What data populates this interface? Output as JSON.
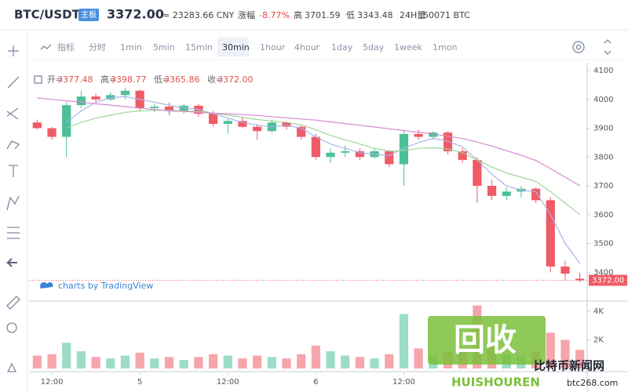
{
  "header": {
    "symbol": "BTC/USDT",
    "badge": "主板",
    "price": "3372.00",
    "cny": "≈ 23283.66 CNY",
    "change_label": "涨幅",
    "change": "-8.77%",
    "high_label": "高",
    "high": "3701.59",
    "low_label": "低",
    "low": "3343.48",
    "vol_label": "24H量",
    "volume": "50071 BTC"
  },
  "toolbar": {
    "items": [
      "指标",
      "分时",
      "1min",
      "5min",
      "15min",
      "30min",
      "1hour",
      "4hour",
      "1day",
      "5day",
      "1week",
      "1mon"
    ]
  },
  "legend": [
    {
      "label": "开=",
      "value": "3377.48"
    },
    {
      "label": "高=",
      "value": "3398.77"
    },
    {
      "label": "低=",
      "value": "3365.86"
    },
    {
      "label": "收=",
      "value": "3372.00"
    }
  ],
  "watermark": "charts by TradingView",
  "logo": {
    "big": "回收",
    "site": "比特币新闻网",
    "brand": "HUISHOUREN",
    "url": "btc268.com"
  },
  "chart_data": {
    "type": "candlestick",
    "categories": [
      null,
      "12:00",
      null,
      null,
      null,
      null,
      null,
      "5",
      null,
      null,
      null,
      null,
      null,
      "12:00",
      null,
      null,
      null,
      null,
      null,
      "6",
      null,
      null,
      null,
      null,
      null,
      "12:00",
      null,
      null,
      null,
      null,
      null,
      null,
      null,
      null,
      null,
      null,
      null,
      null
    ],
    "open": [
      3920,
      3900,
      3870,
      3980,
      4010,
      4000,
      4015,
      4030,
      3970,
      3975,
      3960,
      3978,
      3950,
      3915,
      3925,
      3905,
      3890,
      3920,
      3905,
      3870,
      3800,
      3815,
      3820,
      3800,
      3820,
      3775,
      3880,
      3870,
      3885,
      3820,
      3790,
      3700,
      3665,
      3680,
      3690,
      3650,
      3420,
      3377.48
    ],
    "high": [
      3930,
      3905,
      3990,
      4030,
      4020,
      4025,
      4040,
      4035,
      3985,
      3990,
      3985,
      3985,
      3960,
      3935,
      3940,
      3915,
      3930,
      3925,
      3910,
      3880,
      3830,
      3840,
      3830,
      3830,
      3825,
      3890,
      3895,
      3890,
      3890,
      3830,
      3800,
      3720,
      3695,
      3700,
      3695,
      3660,
      3440,
      3398.77
    ],
    "low": [
      3895,
      3860,
      3800,
      3970,
      3990,
      3995,
      4000,
      3960,
      3955,
      3945,
      3950,
      3940,
      3905,
      3880,
      3900,
      3860,
      3885,
      3895,
      3860,
      3790,
      3780,
      3800,
      3790,
      3795,
      3765,
      3700,
      3860,
      3860,
      3810,
      3780,
      3640,
      3650,
      3650,
      3660,
      3640,
      3400,
      3370,
      3365.86
    ],
    "close": [
      3900,
      3870,
      3980,
      4010,
      4000,
      4015,
      4030,
      3970,
      3975,
      3960,
      3978,
      3950,
      3915,
      3925,
      3905,
      3890,
      3920,
      3905,
      3870,
      3800,
      3815,
      3820,
      3800,
      3820,
      3775,
      3880,
      3870,
      3885,
      3820,
      3790,
      3700,
      3665,
      3680,
      3690,
      3650,
      3420,
      3395,
      3372
    ],
    "up_color": "#4cbf98",
    "down_color": "#ef5b66",
    "moving_averages": [
      {
        "color": "#aab4e8",
        "values": [
          null,
          null,
          3920,
          3960,
          3990,
          4005,
          4010,
          4000,
          3990,
          3980,
          3970,
          3965,
          3950,
          3935,
          3920,
          3910,
          3905,
          3910,
          3900,
          3870,
          3845,
          3830,
          3815,
          3810,
          3805,
          3830,
          3850,
          3865,
          3855,
          3835,
          3790,
          3740,
          3700,
          3685,
          3680,
          3600,
          3500,
          3430
        ]
      },
      {
        "color": "#9fd69a",
        "values": [
          null,
          null,
          3900,
          3920,
          3935,
          3945,
          3955,
          3960,
          3962,
          3962,
          3960,
          3958,
          3952,
          3945,
          3938,
          3930,
          3925,
          3920,
          3912,
          3895,
          3875,
          3860,
          3845,
          3830,
          3820,
          3822,
          3830,
          3832,
          3828,
          3815,
          3790,
          3765,
          3745,
          3730,
          3715,
          3680,
          3640,
          3600
        ]
      },
      {
        "color": "#d58ad0",
        "values": [
          4005,
          4000,
          3995,
          3990,
          3985,
          3980,
          3975,
          3970,
          3965,
          3960,
          3958,
          3955,
          3952,
          3950,
          3947,
          3944,
          3940,
          3936,
          3932,
          3928,
          3922,
          3916,
          3910,
          3904,
          3898,
          3892,
          3886,
          3880,
          3872,
          3864,
          3852,
          3838,
          3822,
          3806,
          3788,
          3760,
          3730,
          3700
        ]
      }
    ],
    "ylim": [
      3300,
      4130
    ],
    "yticks": [
      3400,
      3500,
      3600,
      3700,
      3800,
      3900,
      4000,
      4100
    ],
    "last_price": {
      "value": 3372,
      "label": "3372.00"
    },
    "volume": {
      "values": [
        0.9,
        1.0,
        1.8,
        1.2,
        0.8,
        0.7,
        0.9,
        1.1,
        0.7,
        0.8,
        0.6,
        0.8,
        1.0,
        0.9,
        0.7,
        0.9,
        0.8,
        0.7,
        1.0,
        1.6,
        1.2,
        0.9,
        0.8,
        0.7,
        1.0,
        3.8,
        1.4,
        0.9,
        1.2,
        1.3,
        4.4,
        1.6,
        1.0,
        0.9,
        1.2,
        2.5,
        2.0,
        1.3
      ],
      "ylim": [
        0,
        4.65
      ],
      "yticks": [
        {
          "value": 2,
          "label": "2K"
        },
        {
          "value": 4,
          "label": "4K"
        }
      ]
    }
  }
}
